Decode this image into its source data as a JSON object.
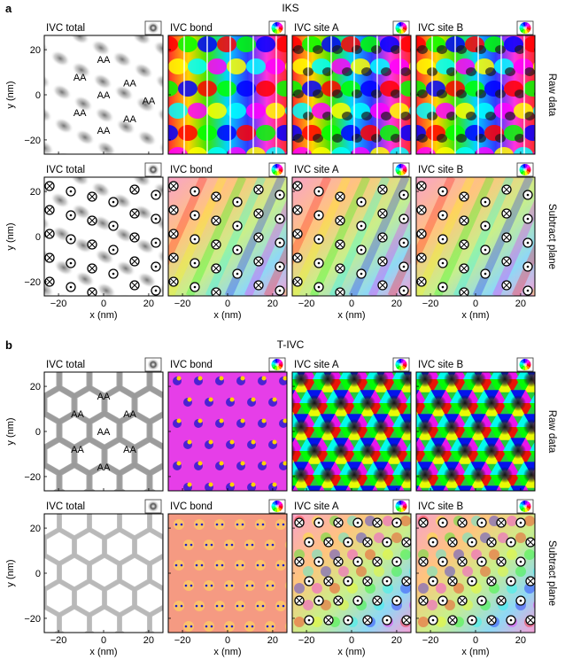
{
  "sections": [
    {
      "letter": "a",
      "title": "IKS",
      "rows": [
        {
          "side_label": "Raw data",
          "panels": [
            {
              "title": "IVC total",
              "style": "total-stripes",
              "labels": [
                "AA",
                "AA",
                "AA",
                "AA",
                "AA",
                "AA",
                "AA",
                "AA"
              ],
              "legend": "gray"
            },
            {
              "title": "IVC bond",
              "style": "color-stripes",
              "labels": [],
              "legend": "hsv"
            },
            {
              "title": "IVC site A",
              "style": "color-stripes-dark",
              "labels": [],
              "legend": "hsv"
            },
            {
              "title": "IVC site B",
              "style": "color-stripes-dark",
              "labels": [],
              "legend": "hsv"
            }
          ]
        },
        {
          "side_label": "Subtract plane",
          "panels": [
            {
              "title": "IVC total",
              "style": "total-stripes-markers",
              "labels": [],
              "legend": "gray"
            },
            {
              "title": "IVC bond",
              "style": "pastel-markers",
              "labels": [],
              "legend": "hsv"
            },
            {
              "title": "IVC site A",
              "style": "pastel-markers",
              "labels": [],
              "legend": "hsv"
            },
            {
              "title": "IVC site B",
              "style": "pastel-markers",
              "labels": [],
              "legend": "hsv"
            }
          ]
        }
      ]
    },
    {
      "letter": "b",
      "title": "T-IVC",
      "rows": [
        {
          "side_label": "Raw data",
          "panels": [
            {
              "title": "IVC total",
              "style": "total-hex",
              "labels": [
                "AA",
                "AA",
                "AA",
                "AA",
                "AA",
                "AA",
                "AA"
              ],
              "legend": "gray"
            },
            {
              "title": "IVC bond",
              "style": "magenta",
              "labels": [],
              "legend": "hsv"
            },
            {
              "title": "IVC site A",
              "style": "vortex",
              "labels": [],
              "legend": "hsv"
            },
            {
              "title": "IVC site B",
              "style": "vortex",
              "labels": [],
              "legend": "hsv"
            }
          ]
        },
        {
          "side_label": "Subtract plane",
          "panels": [
            {
              "title": "IVC total",
              "style": "total-hex-light",
              "labels": [],
              "legend": "gray"
            },
            {
              "title": "IVC bond",
              "style": "salmon-dots",
              "labels": [],
              "legend": "hsv"
            },
            {
              "title": "IVC site A",
              "style": "pastel-grid-markers",
              "labels": [],
              "legend": "hsv"
            },
            {
              "title": "IVC site B",
              "style": "pastel-grid-markers",
              "labels": [],
              "legend": "hsv"
            }
          ]
        }
      ]
    }
  ],
  "y_axis_label": "y (nm)",
  "x_axis_label": "x (nm)",
  "y_ticks": [
    "20",
    "0",
    "−20"
  ],
  "x_ticks": [
    "−20",
    "0",
    "20"
  ]
}
